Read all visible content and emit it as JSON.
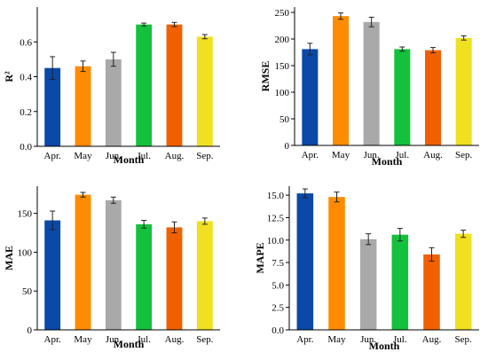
{
  "chart_data": [
    {
      "type": "bar",
      "xlabel": "Month",
      "ylabel": "R²",
      "categories": [
        "Apr.",
        "May",
        "Jun.",
        "Jul.",
        "Aug.",
        "Sep."
      ],
      "values": [
        0.45,
        0.46,
        0.5,
        0.7,
        0.7,
        0.63
      ],
      "errors": [
        0.065,
        0.03,
        0.04,
        0.008,
        0.012,
        0.012
      ],
      "ylim": [
        0,
        0.8
      ],
      "yticks": [
        0.0,
        0.2,
        0.4,
        0.6
      ],
      "yticklabels": [
        "0.0",
        "0.2",
        "0.4",
        "0.6"
      ],
      "colors": [
        "#0a49a8",
        "#ff8c00",
        "#a9a9a9",
        "#13c13c",
        "#f06000",
        "#f0e020"
      ]
    },
    {
      "type": "bar",
      "xlabel": "Month",
      "ylabel": "RMSE",
      "categories": [
        "Apr.",
        "May",
        "Jun.",
        "Jul.",
        "Aug.",
        "Sep."
      ],
      "values": [
        181,
        243,
        232,
        181,
        179,
        202
      ],
      "errors": [
        11,
        6,
        9,
        4,
        5,
        4
      ],
      "ylim": [
        0,
        260
      ],
      "yticks": [
        0,
        50,
        100,
        150,
        200,
        250
      ],
      "yticklabels": [
        "0",
        "50",
        "100",
        "150",
        "200",
        "250"
      ],
      "colors": [
        "#0a49a8",
        "#ff8c00",
        "#a9a9a9",
        "#13c13c",
        "#f06000",
        "#f0e020"
      ]
    },
    {
      "type": "bar",
      "xlabel": "Month",
      "ylabel": "MAE",
      "categories": [
        "Apr.",
        "May",
        "Jun.",
        "Jul.",
        "Aug.",
        "Sep."
      ],
      "values": [
        141,
        174,
        167,
        136,
        132,
        140
      ],
      "errors": [
        12,
        3,
        4,
        5,
        7,
        4
      ],
      "ylim": [
        0,
        185
      ],
      "yticks": [
        0,
        50,
        100,
        150
      ],
      "yticklabels": [
        "0",
        "50",
        "100",
        "150"
      ],
      "colors": [
        "#0a49a8",
        "#ff8c00",
        "#a9a9a9",
        "#13c13c",
        "#f06000",
        "#f0e020"
      ]
    },
    {
      "type": "bar",
      "xlabel": "Month",
      "ylabel": "MAPE",
      "categories": [
        "Apr.",
        "May",
        "Jun.",
        "Jul.",
        "Aug.",
        "Sep."
      ],
      "values": [
        15.2,
        14.8,
        10.1,
        10.6,
        8.4,
        10.7
      ],
      "errors": [
        0.5,
        0.55,
        0.6,
        0.7,
        0.75,
        0.4
      ],
      "ylim": [
        0,
        16
      ],
      "yticks": [
        0.0,
        2.5,
        5.0,
        7.5,
        10.0,
        12.5,
        15.0
      ],
      "yticklabels": [
        "0.0",
        "2.5",
        "5.0",
        "7.5",
        "10.0",
        "12.5",
        "15.0"
      ],
      "colors": [
        "#0a49a8",
        "#ff8c00",
        "#a9a9a9",
        "#13c13c",
        "#f06000",
        "#f0e020"
      ]
    }
  ]
}
